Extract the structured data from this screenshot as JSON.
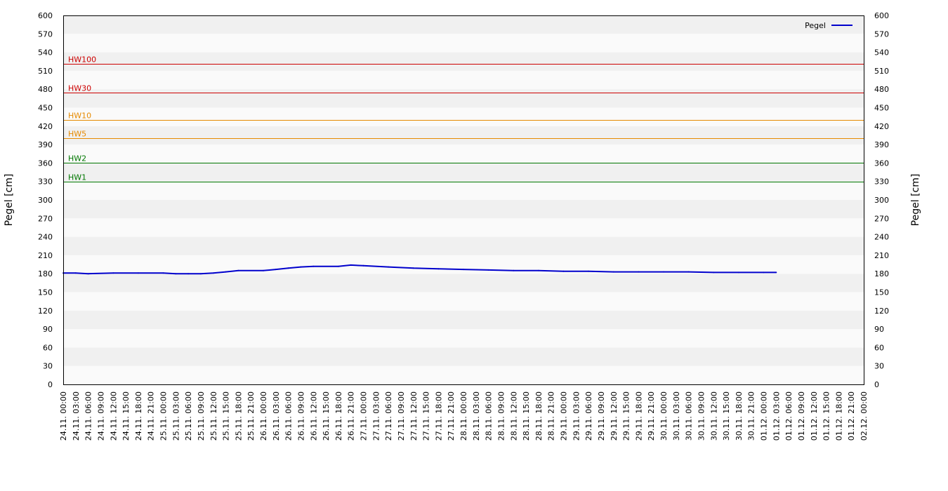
{
  "chart_data": {
    "type": "line",
    "ylabel_left": "Pegel [cm]",
    "ylabel_right": "Pegel [cm]",
    "ylim": [
      0,
      600
    ],
    "y_ticks": [
      0,
      30,
      60,
      90,
      120,
      150,
      180,
      210,
      240,
      270,
      300,
      330,
      360,
      390,
      420,
      450,
      480,
      510,
      540,
      570,
      600
    ],
    "x_ticks": [
      "24.11. 00:00",
      "24.11. 03:00",
      "24.11. 06:00",
      "24.11. 09:00",
      "24.11. 12:00",
      "24.11. 15:00",
      "24.11. 18:00",
      "24.11. 21:00",
      "25.11. 00:00",
      "25.11. 03:00",
      "25.11. 06:00",
      "25.11. 09:00",
      "25.11. 12:00",
      "25.11. 15:00",
      "25.11. 18:00",
      "25.11. 21:00",
      "26.11. 00:00",
      "26.11. 03:00",
      "26.11. 06:00",
      "26.11. 09:00",
      "26.11. 12:00",
      "26.11. 15:00",
      "26.11. 18:00",
      "26.11. 21:00",
      "27.11. 00:00",
      "27.11. 03:00",
      "27.11. 06:00",
      "27.11. 09:00",
      "27.11. 12:00",
      "27.11. 15:00",
      "27.11. 18:00",
      "27.11. 21:00",
      "28.11. 00:00",
      "28.11. 03:00",
      "28.11. 06:00",
      "28.11. 09:00",
      "28.11. 12:00",
      "28.11. 15:00",
      "28.11. 18:00",
      "28.11. 21:00",
      "29.11. 00:00",
      "29.11. 03:00",
      "29.11. 06:00",
      "29.11. 09:00",
      "29.11. 12:00",
      "29.11. 15:00",
      "29.11. 18:00",
      "29.11. 21:00",
      "30.11. 00:00",
      "30.11. 03:00",
      "30.11. 06:00",
      "30.11. 09:00",
      "30.11. 12:00",
      "30.11. 15:00",
      "30.11. 18:00",
      "30.11. 21:00",
      "01.12. 00:00",
      "01.12. 03:00",
      "01.12. 06:00",
      "01.12. 09:00",
      "01.12. 12:00",
      "01.12. 15:00",
      "01.12. 18:00",
      "01.12. 21:00",
      "02.12. 00:00"
    ],
    "grid": true,
    "legend_position": "top-right",
    "thresholds": [
      {
        "label": "HW100",
        "value": 521,
        "color": "#cc0000"
      },
      {
        "label": "HW30",
        "value": 475,
        "color": "#cc0000"
      },
      {
        "label": "HW10",
        "value": 430,
        "color": "#e68a00"
      },
      {
        "label": "HW5",
        "value": 400,
        "color": "#e68a00"
      },
      {
        "label": "HW2",
        "value": 360,
        "color": "#007700"
      },
      {
        "label": "HW1",
        "value": 330,
        "color": "#007700"
      }
    ],
    "series": [
      {
        "name": "Pegel",
        "color": "#0000cc",
        "x": [
          "24.11. 00:00",
          "24.11. 03:00",
          "24.11. 06:00",
          "24.11. 12:00",
          "24.11. 18:00",
          "25.11. 00:00",
          "25.11. 03:00",
          "25.11. 06:00",
          "25.11. 09:00",
          "25.11. 12:00",
          "25.11. 15:00",
          "25.11. 18:00",
          "26.11. 00:00",
          "26.11. 03:00",
          "26.11. 06:00",
          "26.11. 09:00",
          "26.11. 12:00",
          "26.11. 18:00",
          "26.11. 21:00",
          "27.11. 00:00",
          "27.11. 06:00",
          "27.11. 12:00",
          "27.11. 18:00",
          "28.11. 00:00",
          "28.11. 06:00",
          "28.11. 12:00",
          "28.11. 18:00",
          "29.11. 00:00",
          "29.11. 06:00",
          "29.11. 12:00",
          "29.11. 18:00",
          "30.11. 00:00",
          "30.11. 06:00",
          "30.11. 12:00",
          "30.11. 18:00",
          "01.12. 00:00",
          "01.12. 03:00"
        ],
        "values": [
          181,
          181,
          180,
          181,
          181,
          181,
          180,
          180,
          180,
          181,
          183,
          185,
          185,
          187,
          189,
          191,
          192,
          192,
          194,
          193,
          191,
          189,
          188,
          187,
          186,
          185,
          185,
          184,
          184,
          183,
          183,
          183,
          183,
          182,
          182,
          182,
          182
        ]
      }
    ]
  }
}
